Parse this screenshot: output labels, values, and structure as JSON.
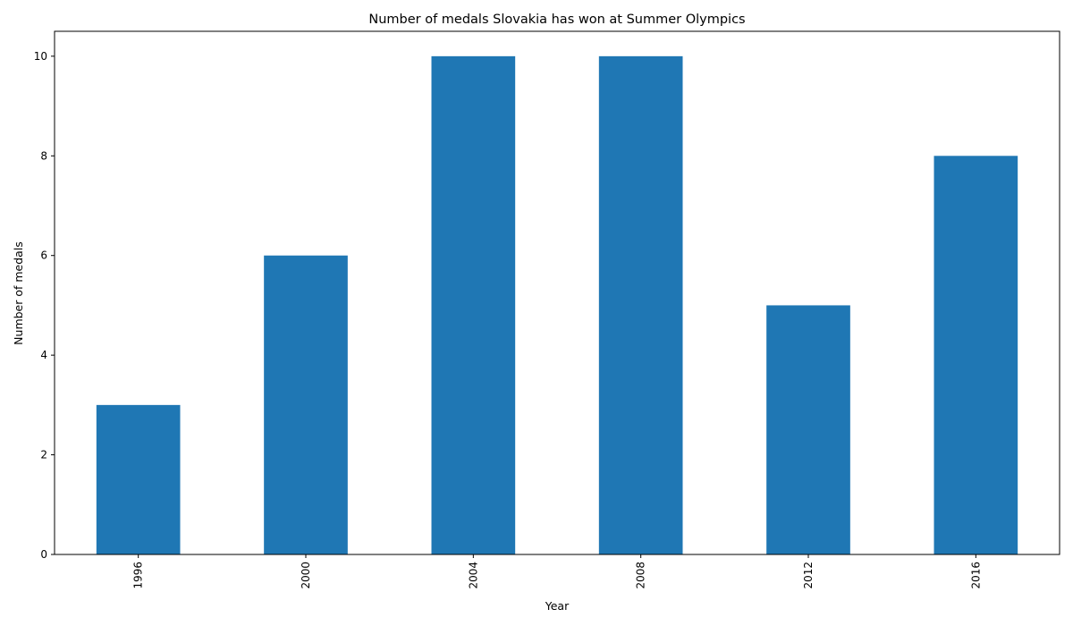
{
  "chart_data": {
    "type": "bar",
    "title": "Number of medals Slovakia has won at Summer Olympics",
    "xlabel": "Year",
    "ylabel": "Number of medals",
    "categories": [
      "1996",
      "2000",
      "2004",
      "2008",
      "2012",
      "2016"
    ],
    "values": [
      3,
      6,
      10,
      10,
      5,
      8
    ],
    "ylim": [
      0,
      10.5
    ],
    "yticks": [
      0,
      2,
      4,
      6,
      8,
      10
    ],
    "xtick_rotation": "vertical",
    "grid": false,
    "legend": "none",
    "bar_color": "#1f77b4"
  }
}
